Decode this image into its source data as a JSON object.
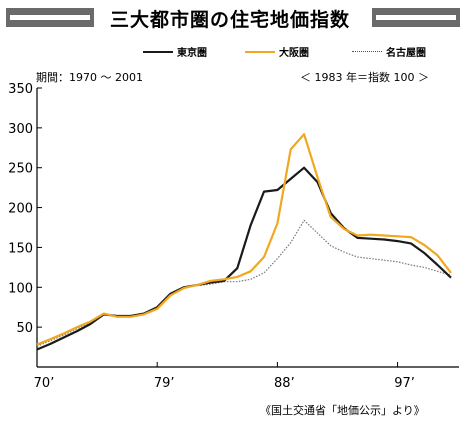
{
  "banner": {
    "title": "三大都市圏の住宅地価指数"
  },
  "header": {
    "period": "期間：1970 〜 2001",
    "index_note": "＜ 1983 年＝指数 100 ＞"
  },
  "footer": {
    "source": "《国土交通省「地価公示」より》"
  },
  "colors": {
    "tokyo": "#1a1a1a",
    "osaka": "#f0a820",
    "nagoya": "#777777",
    "banner": "#6a6a6a"
  },
  "chart_data": {
    "type": "line",
    "title": "三大都市圏の住宅地価指数",
    "x": [
      1970,
      1971,
      1972,
      1973,
      1974,
      1975,
      1976,
      1977,
      1978,
      1979,
      1980,
      1981,
      1982,
      1983,
      1984,
      1985,
      1986,
      1987,
      1988,
      1989,
      1990,
      1991,
      1992,
      1993,
      1994,
      1995,
      1996,
      1997,
      1998,
      1999,
      2000,
      2001
    ],
    "xlim": [
      1970,
      2001
    ],
    "ylim": [
      0,
      350
    ],
    "x_ticks": [
      {
        "value": 1970,
        "label": "70’"
      },
      {
        "value": 1979,
        "label": "79’"
      },
      {
        "value": 1988,
        "label": "88’"
      },
      {
        "value": 1997,
        "label": "97’"
      }
    ],
    "y_ticks": [
      50,
      100,
      150,
      200,
      250,
      300,
      350
    ],
    "series": [
      {
        "name": "東京圏",
        "style": "solid",
        "values": [
          22,
          29,
          37,
          45,
          54,
          66,
          64,
          64,
          67,
          75,
          92,
          100,
          103,
          106,
          108,
          124,
          178,
          220,
          222,
          236,
          250,
          232,
          193,
          174,
          162,
          161,
          160,
          158,
          155,
          143,
          128,
          112
        ]
      },
      {
        "name": "大阪圏",
        "style": "solid",
        "values": [
          28,
          35,
          42,
          50,
          57,
          67,
          63,
          63,
          66,
          73,
          90,
          99,
          103,
          108,
          110,
          113,
          120,
          138,
          180,
          273,
          292,
          238,
          188,
          173,
          165,
          166,
          165,
          164,
          163,
          153,
          140,
          118
        ]
      },
      {
        "name": "名古屋圏",
        "style": "dotted",
        "values": [
          26,
          33,
          40,
          48,
          56,
          66,
          63,
          63,
          66,
          73,
          90,
          100,
          102,
          104,
          107,
          107,
          110,
          118,
          136,
          156,
          184,
          168,
          152,
          144,
          138,
          136,
          134,
          132,
          128,
          125,
          120,
          115
        ]
      }
    ]
  }
}
